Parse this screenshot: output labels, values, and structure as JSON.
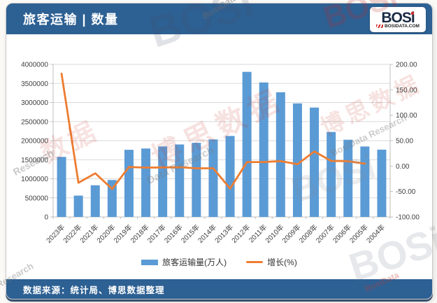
{
  "header": {
    "title": "旅客运输 | 数量",
    "logo": {
      "wordmark": "BOSi",
      "domain": "BOSIDATA.COM"
    }
  },
  "footer": {
    "source": "数据来源：统计局、博思数据整理"
  },
  "theme": {
    "header_bg": "#2d6093",
    "bar_color": "#5B9BD5",
    "line_color": "#ED7D31",
    "grid_color": "#d9d9d9",
    "axis_color": "#bfbfbf",
    "tick_text_color": "#3f3f3f"
  },
  "watermarks": {
    "logo": "BOSi",
    "cn": "博思数据",
    "data_cn": "数据",
    "en_full": "BosiData Research",
    "en_short": "BosiData",
    "research": "Research",
    "data_research": "Data Research"
  },
  "chart_data": {
    "type": "bar+line-combo",
    "title": "旅客运输 | 数量",
    "categories": [
      "2023年",
      "2022年",
      "2021年",
      "2020年",
      "2019年",
      "2018年",
      "2017年",
      "2016年",
      "2015年",
      "2014年",
      "2013年",
      "2012年",
      "2011年",
      "2010年",
      "2009年",
      "2008年",
      "2007年",
      "2006年",
      "2005年",
      "2004年"
    ],
    "series": [
      {
        "name": "旅客运输量(万人)",
        "type": "bar",
        "axis": "left",
        "color": "#5B9BD5",
        "values": [
          1575000,
          559000,
          830400,
          967700,
          1760400,
          1793800,
          1848600,
          1900200,
          1943300,
          2032200,
          2123000,
          3804000,
          3526300,
          3269500,
          2976900,
          2867900,
          2227800,
          2024200,
          1847000,
          1764300
        ]
      },
      {
        "name": "增长(%)",
        "type": "line",
        "axis": "right",
        "color": "#ED7D31",
        "values": [
          181.9,
          -32.7,
          -14.2,
          -45.0,
          -1.9,
          -3.0,
          -2.7,
          -2.2,
          -4.4,
          -4.3,
          -44.2,
          7.9,
          7.9,
          9.8,
          3.8,
          28.7,
          10.1,
          9.6,
          4.7,
          null
        ]
      }
    ],
    "left_axis": {
      "min": 0,
      "max": 4000000,
      "step": 500000,
      "tick_labels": [
        "0",
        "500000",
        "1000000",
        "1500000",
        "2000000",
        "2500000",
        "3000000",
        "3500000",
        "4000000"
      ]
    },
    "right_axis": {
      "min": -100,
      "max": 200,
      "step": 50,
      "tick_labels": [
        "-100.00",
        "-50.00",
        "0.00",
        "50.00",
        "100.00",
        "150.00",
        "200.00"
      ]
    },
    "grid": true,
    "legend_position": "bottom",
    "x_label_rotation": -45
  }
}
